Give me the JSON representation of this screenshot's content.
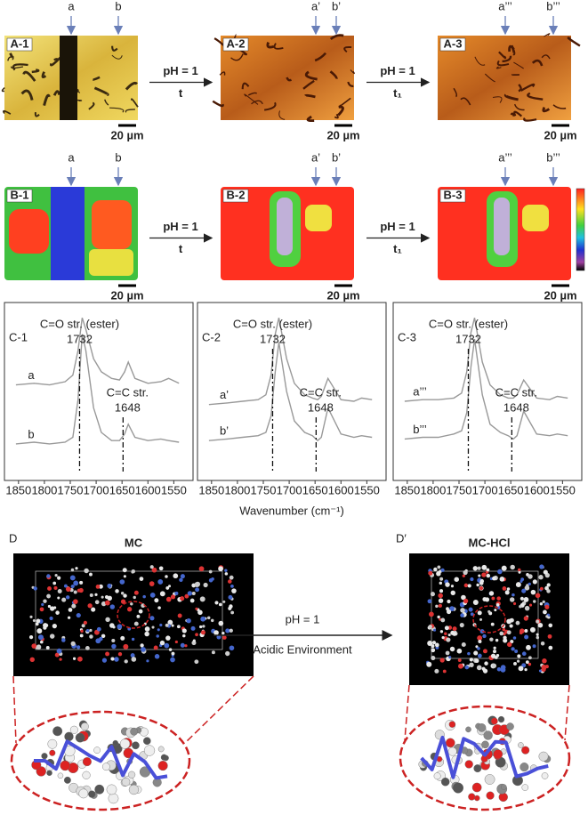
{
  "row_a": {
    "panels": [
      {
        "label": "A-1",
        "markers": [
          "a",
          "b"
        ],
        "scale": "20 µm"
      },
      {
        "label": "A-2",
        "markers": [
          "a’",
          "b’"
        ],
        "scale": "20 µm"
      },
      {
        "label": "A-3",
        "markers": [
          "a’’’",
          "b’’’"
        ],
        "scale": "20 µm"
      }
    ],
    "arrows": [
      {
        "top": "pH = 1",
        "bottom": "t"
      },
      {
        "top": "pH = 1",
        "bottom": "t₁"
      }
    ]
  },
  "row_b": {
    "panels": [
      {
        "label": "B-1",
        "markers": [
          "a",
          "b"
        ],
        "scale": "20 µm"
      },
      {
        "label": "B-2",
        "markers": [
          "a’",
          "b’"
        ],
        "scale": "20 µm"
      },
      {
        "label": "B-3",
        "markers": [
          "a’’’",
          "b’’’"
        ],
        "scale": "20 µm"
      }
    ],
    "arrows": [
      {
        "top": "pH = 1",
        "bottom": "t"
      },
      {
        "top": "pH = 1",
        "bottom": "t₁"
      }
    ]
  },
  "chart_data": [
    {
      "type": "line",
      "title": "C-1",
      "x": [
        1855,
        1820,
        1790,
        1760,
        1745,
        1735,
        1727,
        1720,
        1705,
        1690,
        1670,
        1655,
        1645,
        1638,
        1625,
        1600,
        1575,
        1560,
        1540
      ],
      "xlim": [
        1860,
        1530
      ],
      "xticks": [
        1850,
        1800,
        1750,
        1700,
        1650,
        1600,
        1550
      ],
      "ylim": [
        0,
        100
      ],
      "series": [
        {
          "name": "a",
          "color": "#999999",
          "values": [
            54,
            55,
            54,
            56,
            60,
            75,
            95,
            88,
            70,
            62,
            58,
            57,
            62,
            68,
            58,
            55,
            56,
            58,
            55
          ]
        },
        {
          "name": "b",
          "color": "#999999",
          "values": [
            18,
            19,
            18,
            19,
            22,
            45,
            85,
            75,
            40,
            25,
            20,
            20,
            24,
            30,
            22,
            20,
            21,
            20,
            19
          ]
        }
      ],
      "annotations": [
        {
          "text": "C=O str. (ester)",
          "x": 1732
        },
        {
          "text": "C=C str.",
          "x": 1648
        }
      ]
    },
    {
      "type": "line",
      "title": "C-2",
      "xlabel": "Wavenumber (cm⁻¹)",
      "x": [
        1855,
        1820,
        1790,
        1760,
        1745,
        1735,
        1727,
        1720,
        1705,
        1690,
        1670,
        1655,
        1645,
        1638,
        1625,
        1600,
        1575,
        1560,
        1540
      ],
      "xlim": [
        1860,
        1530
      ],
      "xticks": [
        1850,
        1800,
        1750,
        1700,
        1650,
        1600,
        1550
      ],
      "ylim": [
        0,
        100
      ],
      "series": [
        {
          "name": "a’",
          "color": "#999999",
          "values": [
            42,
            43,
            44,
            45,
            48,
            60,
            85,
            95,
            70,
            55,
            48,
            46,
            45,
            47,
            58,
            45,
            44,
            46,
            45
          ]
        },
        {
          "name": "b’",
          "color": "#999999",
          "values": [
            20,
            21,
            22,
            23,
            25,
            35,
            62,
            80,
            50,
            32,
            25,
            23,
            20,
            22,
            40,
            24,
            22,
            23,
            22
          ]
        }
      ],
      "annotations": [
        {
          "text": "C=O str. (ester)",
          "x": 1732
        },
        {
          "text": "C=C str.",
          "x": 1648
        }
      ]
    },
    {
      "type": "line",
      "title": "C-3",
      "x": [
        1855,
        1820,
        1790,
        1760,
        1745,
        1735,
        1727,
        1720,
        1705,
        1690,
        1670,
        1655,
        1645,
        1638,
        1625,
        1600,
        1575,
        1560,
        1540
      ],
      "xlim": [
        1860,
        1530
      ],
      "xticks": [
        1850,
        1800,
        1750,
        1700,
        1650,
        1600,
        1550
      ],
      "ylim": [
        0,
        100
      ],
      "series": [
        {
          "name": "a’’’",
          "color": "#999999",
          "values": [
            44,
            45,
            45,
            46,
            49,
            62,
            86,
            95,
            68,
            54,
            48,
            46,
            46,
            48,
            57,
            46,
            45,
            47,
            46
          ]
        },
        {
          "name": "b’’’",
          "color": "#999999",
          "values": [
            21,
            22,
            22,
            24,
            26,
            37,
            65,
            82,
            48,
            30,
            25,
            23,
            21,
            23,
            38,
            24,
            23,
            24,
            23
          ]
        }
      ],
      "annotations": [
        {
          "text": "C=O str. (ester)",
          "x": 1732
        },
        {
          "text": "C=C str.",
          "x": 1648
        }
      ]
    }
  ],
  "row_d": {
    "left": {
      "label": "D",
      "title": "MC"
    },
    "right": {
      "label": "D′",
      "title": "MC-HCl"
    },
    "arrow": {
      "top": "pH = 1",
      "bottom": "Acidic Environment"
    }
  }
}
